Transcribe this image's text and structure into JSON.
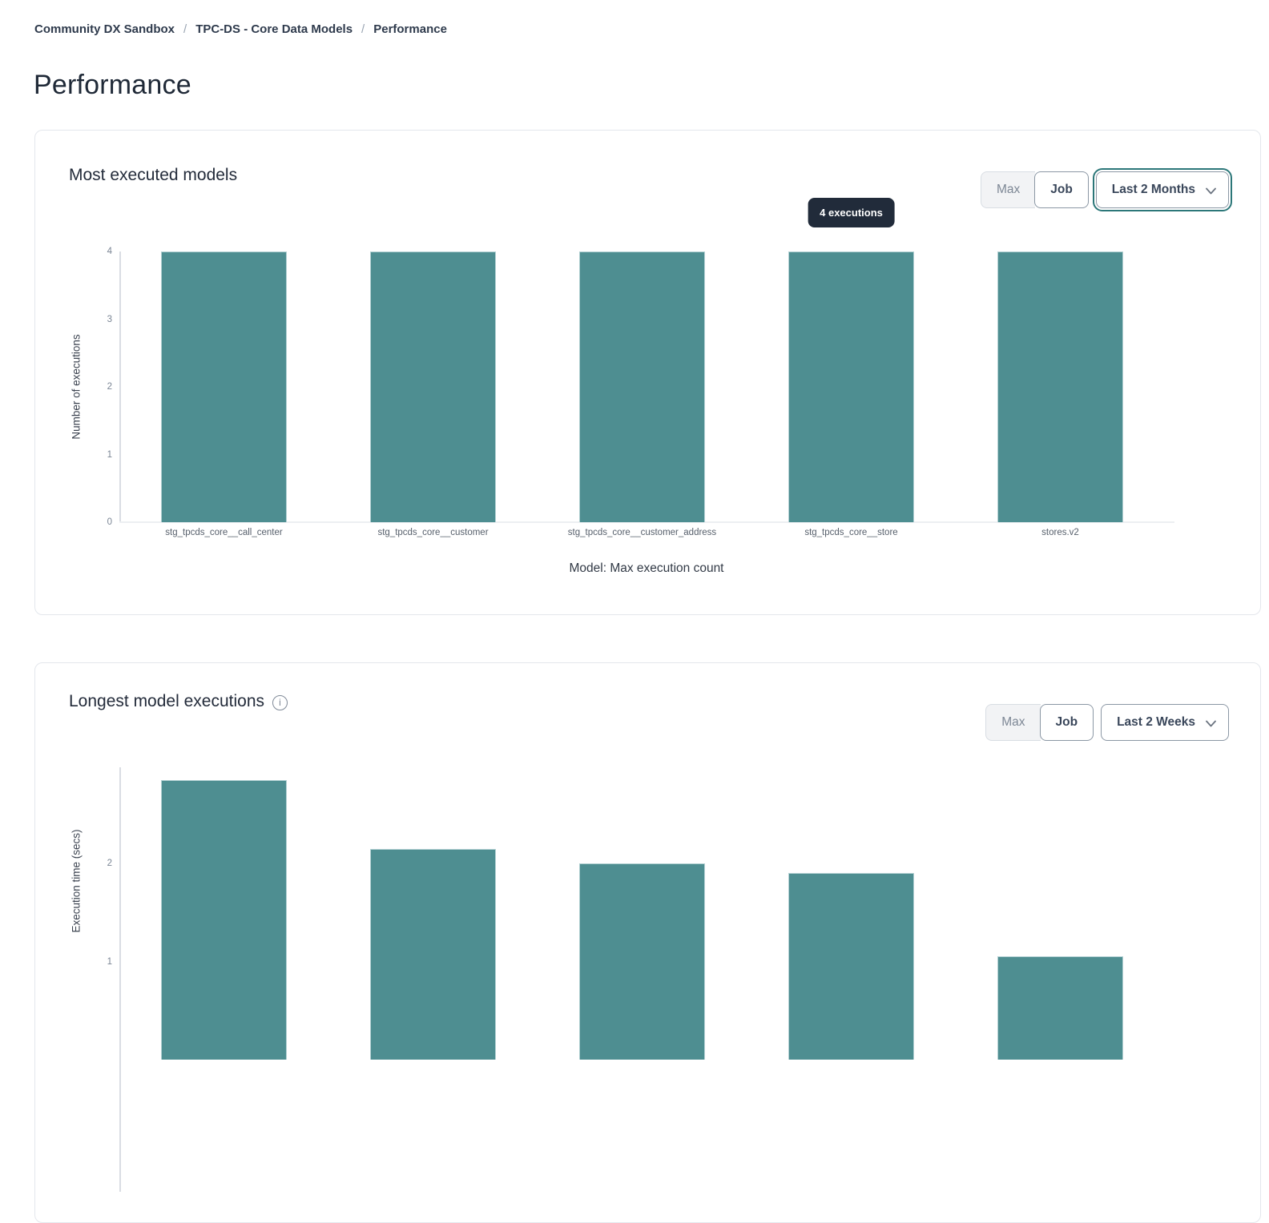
{
  "breadcrumb": {
    "separator": "/",
    "items": [
      {
        "label": "Community DX Sandbox"
      },
      {
        "label": "TPC-DS - Core Data Models"
      },
      {
        "label": "Performance"
      }
    ]
  },
  "page": {
    "title": "Performance"
  },
  "icons": {
    "info_glyph": "i"
  },
  "colors": {
    "bar_fill": "#4e8e91",
    "bar_border": "#b2d0d2",
    "tooltip_bg": "#212b3a",
    "focus_ring_teal": "#2c7779",
    "card_border": "#e4e7ec",
    "text_dark": "#232b3a"
  },
  "cards": [
    {
      "title": "Most executed models",
      "toggle": {
        "max_label": "Max",
        "job_label": "Job",
        "selected": "Job"
      },
      "range_select": {
        "value": "Last 2 Months",
        "focused": true
      },
      "tooltip": {
        "text": "4 executions",
        "bar_index": 3
      }
    },
    {
      "title": "Longest model executions",
      "has_info_icon": true,
      "toggle": {
        "max_label": "Max",
        "job_label": "Job",
        "selected": "Job"
      },
      "range_select": {
        "value": "Last 2 Weeks",
        "focused": false
      }
    }
  ],
  "chart_data": [
    {
      "type": "bar",
      "title": "Most executed models",
      "categories": [
        "stg_tpcds_core__call_center",
        "stg_tpcds_core__customer",
        "stg_tpcds_core__customer_address",
        "stg_tpcds_core__store",
        "stores.v2"
      ],
      "values": [
        4,
        4,
        4,
        4,
        4
      ],
      "xlabel": "Model: Max execution count",
      "ylabel": "Number of executions",
      "ylim": [
        0,
        4
      ],
      "yticks": [
        0,
        1,
        2,
        3,
        4
      ],
      "grid": false,
      "bar_color": "#4e8e91",
      "tooltip_text": "4 executions",
      "tooltip_bar_index": 3
    },
    {
      "type": "bar",
      "title": "Longest model executions",
      "categories": [],
      "values": [
        2.85,
        2.15,
        2.0,
        1.9,
        1.05
      ],
      "xlabel": "",
      "ylabel": "Execution time (secs)",
      "yticks": [
        1,
        2
      ],
      "grid": false,
      "bar_color": "#4e8e91",
      "note": "chart truncated by bottom edge of viewport"
    }
  ]
}
